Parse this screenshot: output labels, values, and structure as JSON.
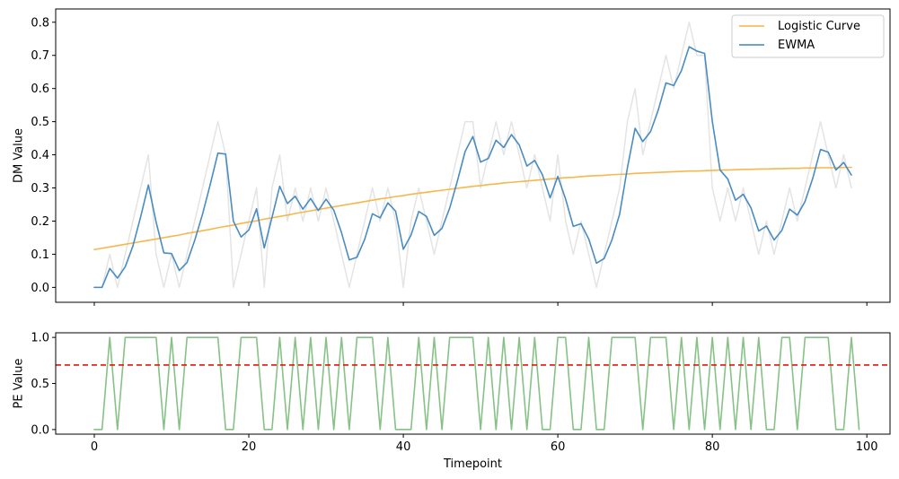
{
  "chart_data": [
    {
      "type": "line",
      "ylabel": "DM Value",
      "xlabel": "",
      "xlim": [
        -5,
        103
      ],
      "ylim": [
        -0.045,
        0.84
      ],
      "yticks": [
        0.0,
        0.1,
        0.2,
        0.3,
        0.4,
        0.5,
        0.6,
        0.7,
        0.8
      ],
      "ytick_labels": [
        "0.0",
        "0.1",
        "0.2",
        "0.3",
        "0.4",
        "0.5",
        "0.6",
        "0.7",
        "0.8"
      ],
      "xticks": [
        0,
        20,
        40,
        60,
        80,
        100
      ],
      "show_xtick_labels": false,
      "grid": false,
      "legend": "upper-right",
      "series": [
        {
          "name": "",
          "role": "raw",
          "color": "#d9d9d9",
          "x_start": 0,
          "values": [
            0.0,
            0.0,
            0.1,
            0.0,
            0.1,
            0.2,
            0.3,
            0.4,
            0.1,
            0.0,
            0.1,
            0.0,
            0.1,
            0.2,
            0.3,
            0.4,
            0.5,
            0.4,
            0.0,
            0.1,
            0.2,
            0.3,
            0.0,
            0.3,
            0.4,
            0.2,
            0.3,
            0.2,
            0.3,
            0.2,
            0.3,
            0.2,
            0.1,
            0.0,
            0.1,
            0.2,
            0.3,
            0.2,
            0.3,
            0.2,
            0.0,
            0.2,
            0.3,
            0.2,
            0.1,
            0.2,
            0.3,
            0.4,
            0.5,
            0.5,
            0.3,
            0.4,
            0.5,
            0.4,
            0.5,
            0.4,
            0.3,
            0.4,
            0.3,
            0.2,
            0.4,
            0.2,
            0.1,
            0.2,
            0.1,
            0.0,
            0.1,
            0.2,
            0.3,
            0.5,
            0.6,
            0.4,
            0.5,
            0.6,
            0.7,
            0.6,
            0.7,
            0.8,
            0.7,
            0.7,
            0.3,
            0.2,
            0.3,
            0.2,
            0.3,
            0.2,
            0.1,
            0.2,
            0.1,
            0.2,
            0.3,
            0.2,
            0.3,
            0.4,
            0.5,
            0.4,
            0.3,
            0.4,
            0.3
          ]
        },
        {
          "name": "Logistic Curve",
          "role": "logistic",
          "color": "#f5b342",
          "x_start": 0,
          "values": [
            0.114,
            0.118,
            0.122,
            0.126,
            0.13,
            0.134,
            0.138,
            0.142,
            0.146,
            0.15,
            0.154,
            0.158,
            0.163,
            0.167,
            0.171,
            0.175,
            0.18,
            0.184,
            0.188,
            0.193,
            0.197,
            0.201,
            0.206,
            0.21,
            0.214,
            0.218,
            0.223,
            0.227,
            0.231,
            0.235,
            0.239,
            0.243,
            0.247,
            0.251,
            0.255,
            0.259,
            0.263,
            0.267,
            0.27,
            0.274,
            0.277,
            0.281,
            0.284,
            0.287,
            0.29,
            0.293,
            0.296,
            0.299,
            0.302,
            0.305,
            0.307,
            0.31,
            0.312,
            0.315,
            0.317,
            0.319,
            0.321,
            0.323,
            0.325,
            0.327,
            0.329,
            0.331,
            0.332,
            0.334,
            0.336,
            0.337,
            0.338,
            0.34,
            0.341,
            0.342,
            0.344,
            0.345,
            0.346,
            0.347,
            0.348,
            0.349,
            0.35,
            0.351,
            0.351,
            0.352,
            0.353,
            0.354,
            0.354,
            0.355,
            0.356,
            0.356,
            0.357,
            0.357,
            0.358,
            0.358,
            0.359,
            0.359,
            0.36,
            0.36,
            0.361,
            0.361,
            0.361,
            0.362,
            0.362
          ]
        },
        {
          "name": "EWMA",
          "role": "ewma",
          "color": "#3f86bf",
          "x_start": 0,
          "values": [
            0.0,
            0.0,
            0.057,
            0.028,
            0.062,
            0.125,
            0.213,
            0.309,
            0.197,
            0.104,
            0.102,
            0.051,
            0.075,
            0.142,
            0.22,
            0.31,
            0.405,
            0.402,
            0.2,
            0.152,
            0.173,
            0.237,
            0.119,
            0.211,
            0.305,
            0.253,
            0.275,
            0.236,
            0.268,
            0.232,
            0.266,
            0.233,
            0.165,
            0.083,
            0.091,
            0.145,
            0.222,
            0.21,
            0.255,
            0.23,
            0.115,
            0.158,
            0.229,
            0.214,
            0.157,
            0.178,
            0.239,
            0.321,
            0.41,
            0.455,
            0.378,
            0.389,
            0.444,
            0.422,
            0.461,
            0.43,
            0.366,
            0.383,
            0.34,
            0.27,
            0.335,
            0.267,
            0.184,
            0.192,
            0.146,
            0.073,
            0.087,
            0.143,
            0.221,
            0.36,
            0.48,
            0.44,
            0.47,
            0.535,
            0.617,
            0.609,
            0.654,
            0.726,
            0.713,
            0.706,
            0.5,
            0.354,
            0.327,
            0.263,
            0.281,
            0.24,
            0.17,
            0.185,
            0.143,
            0.172,
            0.236,
            0.218,
            0.259,
            0.329,
            0.416,
            0.408,
            0.354,
            0.377,
            0.339
          ]
        }
      ]
    },
    {
      "type": "line",
      "ylabel": "PE Value",
      "xlabel": "Timepoint",
      "xlim": [
        -5,
        103
      ],
      "ylim": [
        -0.05,
        1.05
      ],
      "yticks": [
        0.0,
        0.5,
        1.0
      ],
      "ytick_labels": [
        "0.0",
        "0.5",
        "1.0"
      ],
      "xticks": [
        0,
        20,
        40,
        60,
        80,
        100
      ],
      "xtick_labels": [
        "0",
        "20",
        "40",
        "60",
        "80",
        "100"
      ],
      "grid": false,
      "threshold": {
        "value": 0.7,
        "color": "#e6140f",
        "style": "dashed"
      },
      "series": [
        {
          "name": "",
          "color": "#7fbf7f",
          "x_start": 0,
          "values": [
            0,
            0,
            1,
            0,
            1,
            1,
            1,
            1,
            1,
            0,
            1,
            0,
            1,
            1,
            1,
            1,
            1,
            0,
            0,
            1,
            1,
            1,
            0,
            0,
            1,
            0,
            1,
            0,
            1,
            0,
            1,
            0,
            1,
            0,
            1,
            1,
            1,
            0,
            1,
            0,
            0,
            0,
            1,
            0,
            1,
            0,
            1,
            1,
            1,
            1,
            0,
            1,
            0,
            1,
            0,
            1,
            0,
            1,
            0,
            0,
            1,
            1,
            0,
            0,
            1,
            0,
            0,
            1,
            1,
            1,
            1,
            0,
            1,
            1,
            1,
            0,
            1,
            0,
            1,
            0,
            1,
            0,
            1,
            0,
            1,
            0,
            1,
            0,
            0,
            1,
            1,
            0,
            1,
            1,
            1,
            1,
            0,
            0,
            1,
            0
          ]
        }
      ]
    }
  ]
}
